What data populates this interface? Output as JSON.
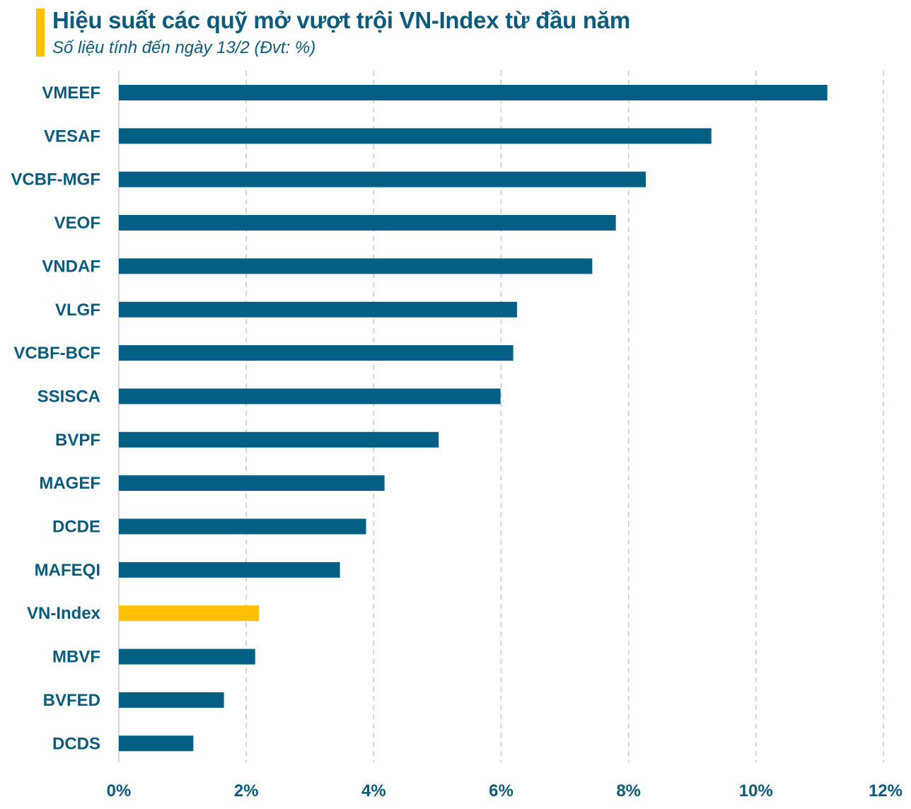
{
  "header": {
    "title": "Hiệu suất các quỹ mở vượt trội VN-Index từ đầu năm",
    "subtitle": "Số liệu tính đến ngày 13/2 (Đvt: %)"
  },
  "colors": {
    "accent": "#FFC000",
    "bar": "#035F84",
    "highlight": "#FFC000",
    "text": "#0B5B7E",
    "grid": "#C8C8C8"
  },
  "chart_data": {
    "type": "bar",
    "orientation": "horizontal",
    "title": "Hiệu suất các quỹ mở vượt trội VN-Index từ đầu năm",
    "subtitle": "Số liệu tính đến ngày 13/2 (Đvt: %)",
    "xlabel": "",
    "ylabel": "",
    "xlim": [
      0,
      12
    ],
    "xticks": [
      0,
      2,
      4,
      6,
      8,
      10,
      12
    ],
    "xtick_labels": [
      "0%",
      "2%",
      "4%",
      "6%",
      "8%",
      "10%",
      "12%"
    ],
    "grid": "vertical dashed",
    "highlight_category": "VN-Index",
    "categories": [
      "VMEEF",
      "VESAF",
      "VCBF-MGF",
      "VEOF",
      "VNDAF",
      "VLGF",
      "VCBF-BCF",
      "SSISCA",
      "BVPF",
      "MAGEF",
      "DCDE",
      "MAFEQI",
      "VN-Index",
      "MBVF",
      "BVFED",
      "DCDS"
    ],
    "values": [
      11.12,
      9.3,
      8.27,
      7.8,
      7.43,
      6.25,
      6.19,
      5.99,
      5.02,
      4.17,
      3.88,
      3.47,
      2.2,
      2.14,
      1.65,
      1.17
    ]
  }
}
